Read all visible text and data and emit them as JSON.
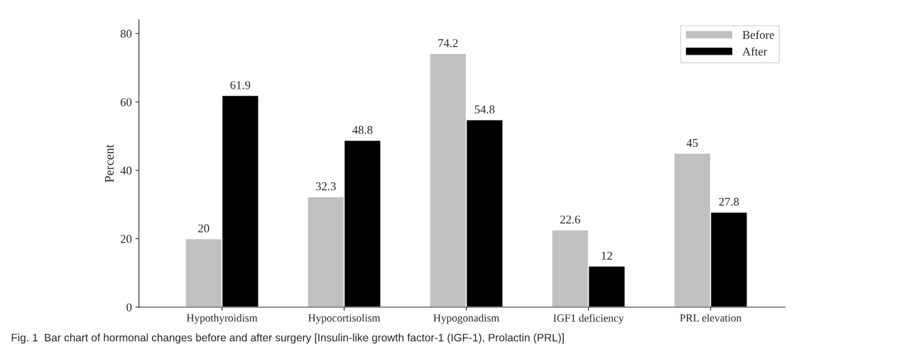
{
  "chart_data": {
    "type": "bar",
    "ylabel": "Percent",
    "categories": [
      "Hypothyroidism",
      "Hypocortisolism",
      "Hypogonadism",
      "IGF1 deficiency",
      "PRL elevation"
    ],
    "series": [
      {
        "name": "Before",
        "color": "#c0c0c0",
        "values": [
          20,
          32.3,
          74.2,
          22.6,
          45
        ]
      },
      {
        "name": "After",
        "color": "#000000",
        "values": [
          61.9,
          48.8,
          54.8,
          12,
          27.8
        ]
      }
    ],
    "ylim": [
      0,
      84
    ],
    "yticks": [
      0,
      20,
      40,
      60,
      80
    ],
    "grid": false,
    "legend": "top right",
    "data_labels": true,
    "annotations": [
      "Fig. 1  Bar chart of hormonal changes before and after surgery [Insulin-like growth factor-1 (IGF-1), Prolactin (PRL)]"
    ]
  }
}
